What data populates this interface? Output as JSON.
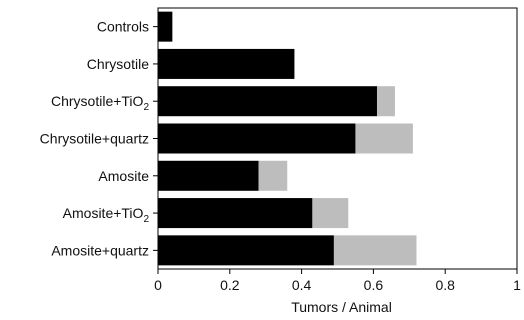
{
  "chart_data": {
    "type": "bar",
    "orientation": "horizontal",
    "stacked": true,
    "categories": [
      {
        "base": "Controls",
        "sub": ""
      },
      {
        "base": "Chrysotile",
        "sub": ""
      },
      {
        "base": "Chrysotile+TiO",
        "sub": "2"
      },
      {
        "base": "Chrysotile+quartz",
        "sub": ""
      },
      {
        "base": "Amosite",
        "sub": ""
      },
      {
        "base": "Amosite+TiO",
        "sub": "2"
      },
      {
        "base": "Amosite+quartz",
        "sub": ""
      }
    ],
    "series": [
      {
        "color": "#000000",
        "values": [
          0.04,
          0.38,
          0.61,
          0.55,
          0.28,
          0.43,
          0.49
        ]
      },
      {
        "color": "#bdbdbd",
        "values": [
          0.0,
          0.0,
          0.05,
          0.16,
          0.08,
          0.1,
          0.23
        ]
      }
    ],
    "xlabel": "Tumors / Animal",
    "xlim": [
      0,
      1
    ],
    "xticks": [
      0,
      0.2,
      0.4,
      0.6,
      0.8,
      1
    ],
    "xtick_labels": [
      "0",
      "0.2",
      "0.4",
      "0.6",
      "0.8",
      "1"
    ],
    "grid": false,
    "legend": "none"
  }
}
